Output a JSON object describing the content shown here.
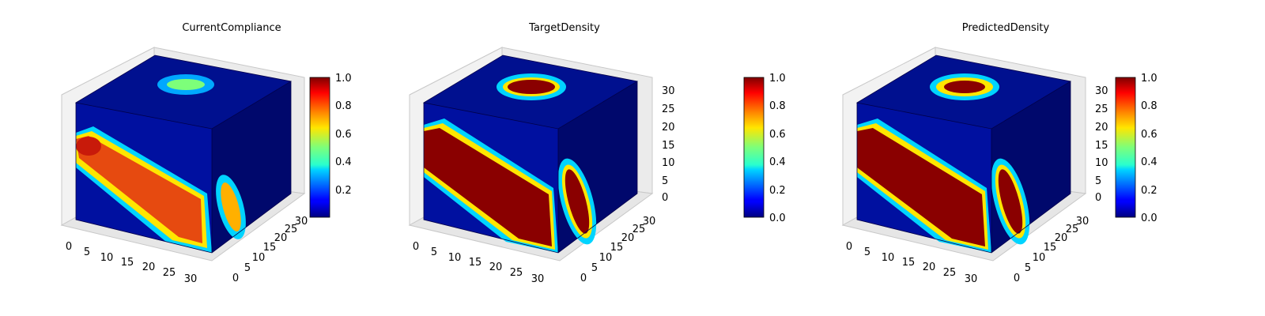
{
  "panels": [
    {
      "title": "CurrentCompliance",
      "x_ticks": [
        "0",
        "5",
        "10",
        "15",
        "20",
        "25",
        "30"
      ],
      "y_ticks": [
        "0",
        "5",
        "10",
        "15",
        "20",
        "25",
        "30"
      ],
      "z_ticks": [],
      "colorbar_ticks": [
        "0.2",
        "0.4",
        "0.6",
        "0.8",
        "1.0"
      ],
      "colorbar_range": [
        0.03,
        1.0
      ]
    },
    {
      "title": "TargetDensity",
      "x_ticks": [
        "0",
        "5",
        "10",
        "15",
        "20",
        "25",
        "30"
      ],
      "y_ticks": [
        "0",
        "5",
        "10",
        "15",
        "20",
        "25",
        "30"
      ],
      "z_ticks": [
        "0",
        "5",
        "10",
        "15",
        "20",
        "25",
        "30"
      ],
      "colorbar_ticks": [
        "0.0",
        "0.2",
        "0.4",
        "0.6",
        "0.8",
        "1.0"
      ],
      "colorbar_range": [
        0.0,
        1.0
      ]
    },
    {
      "title": "PredictedDensity",
      "x_ticks": [
        "0",
        "5",
        "10",
        "15",
        "20",
        "25",
        "30"
      ],
      "y_ticks": [
        "0",
        "5",
        "10",
        "15",
        "20",
        "25",
        "30"
      ],
      "z_ticks": [
        "0",
        "5",
        "10",
        "15",
        "20",
        "25",
        "30"
      ],
      "colorbar_ticks": [
        "0.0",
        "0.2",
        "0.4",
        "0.6",
        "0.8",
        "1.0"
      ],
      "colorbar_range": [
        0.0,
        1.0
      ]
    }
  ],
  "chart_data": [
    {
      "type": "heatmap",
      "subtype": "3d-voxel",
      "title": "CurrentCompliance",
      "colormap": "jet",
      "grid_size": [
        32,
        32,
        32
      ],
      "axes_ranges": {
        "x": [
          0,
          32
        ],
        "y": [
          0,
          32
        ],
        "z": [
          0,
          32
        ]
      },
      "features": {
        "top_face_spot_peak": 0.6,
        "left_face_band_peak": 0.9,
        "right_face_ellipse_peak": 0.7
      }
    },
    {
      "type": "heatmap",
      "subtype": "3d-voxel",
      "title": "TargetDensity",
      "colormap": "jet",
      "grid_size": [
        32,
        32,
        32
      ],
      "axes_ranges": {
        "x": [
          0,
          32
        ],
        "y": [
          0,
          32
        ],
        "z": [
          0,
          32
        ]
      },
      "features": {
        "top_face_spot_peak": 1.0,
        "left_face_band_peak": 1.0,
        "right_face_ellipse_peak": 1.0
      }
    },
    {
      "type": "heatmap",
      "subtype": "3d-voxel",
      "title": "PredictedDensity",
      "colormap": "jet",
      "grid_size": [
        32,
        32,
        32
      ],
      "axes_ranges": {
        "x": [
          0,
          32
        ],
        "y": [
          0,
          32
        ],
        "z": [
          0,
          32
        ]
      },
      "features": {
        "top_face_spot_peak": 1.0,
        "left_face_band_peak": 1.0,
        "right_face_ellipse_peak": 1.0
      }
    }
  ]
}
